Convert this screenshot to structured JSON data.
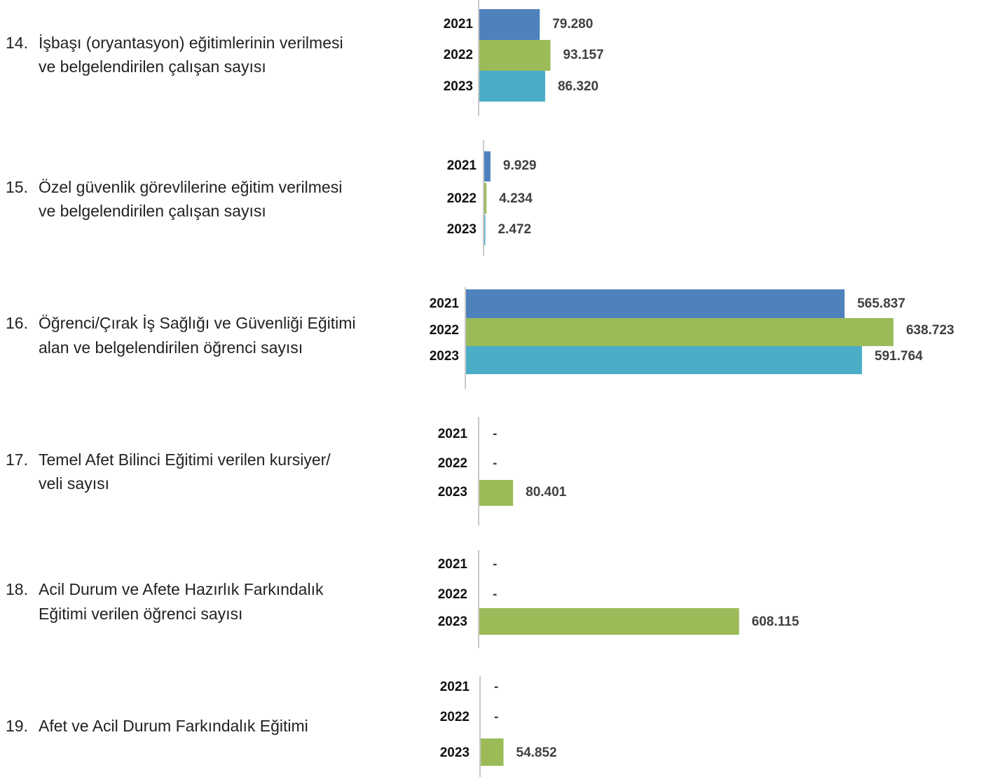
{
  "chart_data": [
    {
      "type": "bar",
      "orientation": "horizontal",
      "number": "14.",
      "title": [
        "İşbaşı (oryantasyon) eğitimlerinin verilmesi",
        "ve belgelendirilen çalışan sayısı"
      ],
      "categories": [
        "2021",
        "2022",
        "2023"
      ],
      "values": [
        79280,
        93157,
        86320
      ],
      "value_labels": [
        "79.280",
        "93.157",
        "86.320"
      ],
      "colors": [
        "#4f81bd",
        "#9bbb59",
        "#4bacc6"
      ],
      "xlim": [
        0,
        600000
      ]
    },
    {
      "type": "bar",
      "orientation": "horizontal",
      "number": "15.",
      "title": [
        "Özel güvenlik görevlilerine eğitim verilmesi",
        "ve belgelendirilen çalışan sayısı"
      ],
      "categories": [
        "2021",
        "2022",
        "2023"
      ],
      "values": [
        9929,
        4234,
        2472
      ],
      "value_labels": [
        "9.929",
        "4.234",
        "2.472"
      ],
      "colors": [
        "#4f81bd",
        "#9bbb59",
        "#4bacc6"
      ],
      "xlim": [
        0,
        660000
      ]
    },
    {
      "type": "bar",
      "orientation": "horizontal",
      "number": "16.",
      "title": [
        "Öğrenci/Çırak İş Sağlığı ve Güvenliği Eğitimi",
        "alan ve belgelendirilen öğrenci sayısı"
      ],
      "categories": [
        "2021",
        "2022",
        "2023"
      ],
      "values": [
        565837,
        638723,
        591764
      ],
      "value_labels": [
        "565.837",
        "638.723",
        "591.764"
      ],
      "colors": [
        "#4f81bd",
        "#9bbb59",
        "#4bacc6"
      ],
      "xlim": [
        0,
        690000
      ]
    },
    {
      "type": "bar",
      "orientation": "horizontal",
      "number": "17.",
      "title": [
        "Temel Afet Bilinci Eğitimi verilen kursiyer/",
        "veli sayısı"
      ],
      "categories": [
        "2021",
        "2022",
        "2023"
      ],
      "values": [
        null,
        null,
        80401
      ],
      "value_labels": [
        "-",
        "-",
        "80.401"
      ],
      "colors": [
        "#9bbb59",
        "#9bbb59",
        "#9bbb59"
      ],
      "xlim": [
        0,
        1080000
      ]
    },
    {
      "type": "bar",
      "orientation": "horizontal",
      "number": "18.",
      "title": [
        "Acil Durum ve Afete Hazırlık Farkındalık",
        "Eğitimi verilen öğrenci sayısı"
      ],
      "categories": [
        "2021",
        "2022",
        "2023"
      ],
      "values": [
        null,
        null,
        608115
      ],
      "value_labels": [
        "-",
        "-",
        "608.115"
      ],
      "colors": [
        "#9bbb59",
        "#9bbb59",
        "#9bbb59"
      ],
      "xlim": [
        0,
        1080000
      ]
    },
    {
      "type": "bar",
      "orientation": "horizontal",
      "number": "19.",
      "title": [
        "Afet ve Acil Durum Farkındalık Eğitimi"
      ],
      "categories": [
        "2021",
        "2022",
        "2023"
      ],
      "values": [
        null,
        null,
        54852
      ],
      "value_labels": [
        "-",
        "-",
        "54.852"
      ],
      "colors": [
        "#9bbb59",
        "#9bbb59",
        "#9bbb59"
      ],
      "xlim": [
        0,
        1080000
      ]
    }
  ]
}
